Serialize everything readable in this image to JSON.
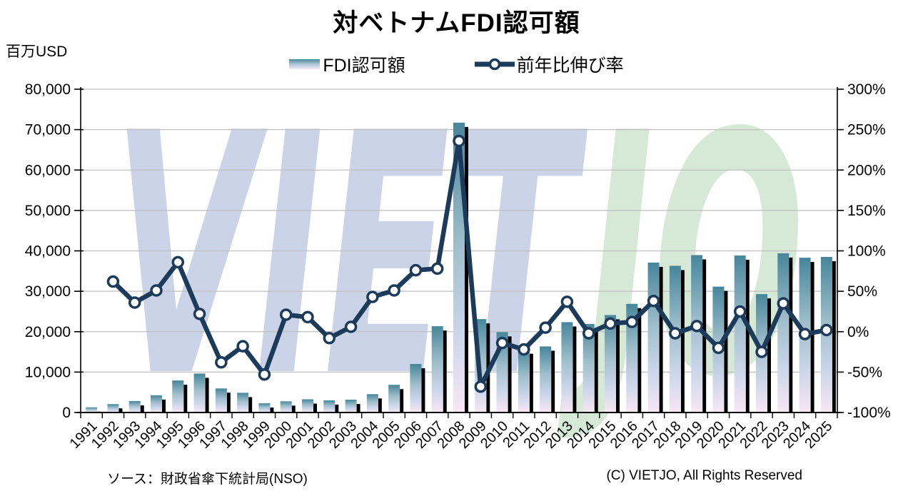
{
  "title": "対ベトナムFDI認可額",
  "y_axis_unit": "百万USD",
  "legend": {
    "bar_label": "FDI認可額",
    "line_label": "前年比伸び率"
  },
  "watermark": {
    "part1": "VIET",
    "part2": "JO",
    "color1": "#CBD3E8",
    "color2": "#D6E9D6"
  },
  "footer": {
    "source": "ソース：財政省傘下統計局(NSO)",
    "copyright": "(C) VIETJO, All Rights Reserved"
  },
  "colors": {
    "bar_gradient_top": "#47869B",
    "bar_gradient_mid1": "#9FBECB",
    "bar_gradient_mid2": "#CAD5EA",
    "bar_gradient_bottom": "#F8E7F3",
    "bar_shadow": "#000000",
    "line": "#1C3B5A",
    "marker_fill": "#FFFFFF",
    "grid": "#BFBFBF",
    "axis": "#000000",
    "text": "#000000"
  },
  "chart_data": {
    "type": "bar",
    "subtype": "combo-bar-line",
    "title": "対ベトナムFDI認可額",
    "categories": [
      "1991",
      "1992",
      "1993",
      "1994",
      "1995",
      "1996",
      "1997",
      "1998",
      "1999",
      "2000",
      "2001",
      "2002",
      "2003",
      "2004",
      "2005",
      "2006",
      "2007",
      "2008",
      "2009",
      "2010",
      "2011",
      "2012",
      "2013",
      "2014",
      "2015",
      "2016",
      "2017",
      "2018",
      "2019",
      "2020",
      "2021",
      "2022",
      "2023",
      "2024",
      "2025"
    ],
    "series": [
      {
        "name": "FDI認可額",
        "type": "bar",
        "axis": "left",
        "unit": "百万USD",
        "values": [
          1284,
          2077,
          2829,
          4262,
          7925,
          9635,
          5955,
          4873,
          2282,
          2762,
          3265,
          2993,
          3172,
          4534,
          6840,
          12004,
          21348,
          71726,
          23107,
          19886,
          15598,
          16348,
          22352,
          21922,
          24115,
          26890,
          37100,
          36300,
          38950,
          31150,
          38850,
          29300,
          39400,
          38300,
          38500
        ]
      },
      {
        "name": "前年比伸び率",
        "type": "line",
        "axis": "right",
        "unit": "%",
        "values": [
          null,
          62,
          36,
          51,
          86,
          22,
          -38,
          -18,
          -53,
          21,
          18,
          -8,
          6,
          43,
          51,
          76,
          78,
          236,
          -68,
          -14,
          -22,
          5,
          37,
          -2,
          10,
          12,
          38,
          -2,
          7,
          -20,
          25,
          -25,
          35,
          -3,
          2
        ]
      }
    ],
    "left_axis": {
      "label": "百万USD",
      "min": 0,
      "max": 80000,
      "step": 10000,
      "tick_labels": [
        "80,000",
        "70,000",
        "60,000",
        "50,000",
        "40,000",
        "30,000",
        "20,000",
        "10,000",
        "0"
      ]
    },
    "right_axis": {
      "min": -100,
      "max": 300,
      "step": 50,
      "tick_labels": [
        "300%",
        "250%",
        "200%",
        "150%",
        "100%",
        "50%",
        "0%",
        "-50%",
        "-100%"
      ]
    },
    "grid": true,
    "legend_position": "top"
  }
}
